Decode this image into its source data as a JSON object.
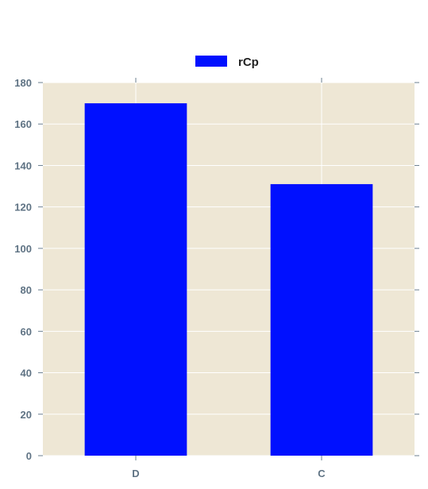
{
  "chart_data": {
    "type": "bar",
    "categories": [
      "D",
      "C"
    ],
    "series": [
      {
        "name": "rCp",
        "values": [
          170,
          131
        ]
      }
    ],
    "ylim": [
      0,
      180
    ],
    "yticks": [
      0,
      20,
      40,
      60,
      80,
      100,
      120,
      140,
      160,
      180
    ],
    "grid": true,
    "legend_position": "top-center",
    "colors": {
      "bar": "#0010ff",
      "plot_bg": "#eee7d5",
      "grid": "#ffffff",
      "tick_text": "#5f7384"
    }
  }
}
